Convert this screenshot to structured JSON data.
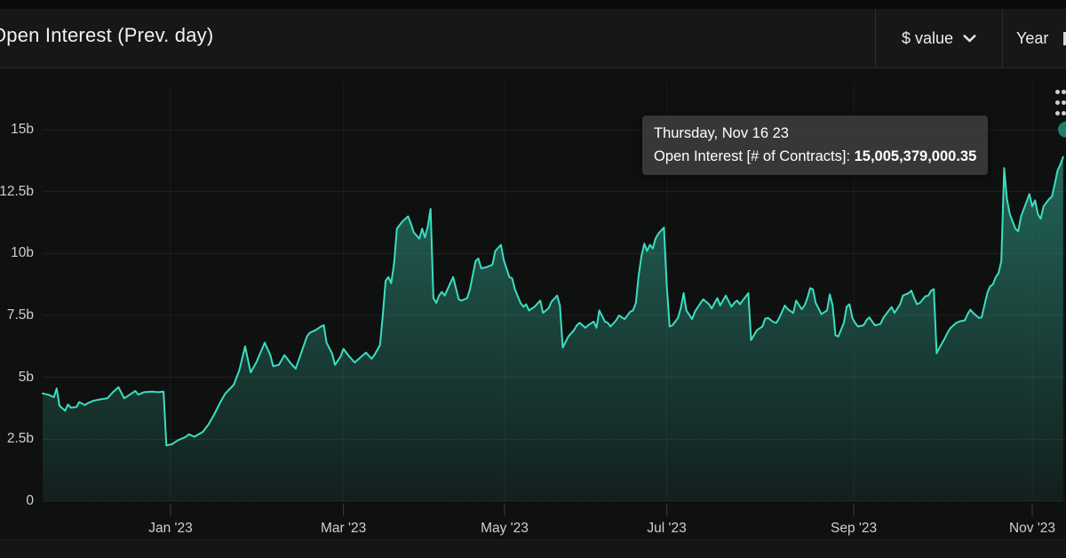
{
  "header": {
    "title": "Open Interest (Prev. day)",
    "unit_selector": {
      "label": "$ value"
    },
    "range_selector": {
      "label": "Year"
    }
  },
  "tooltip": {
    "date": "Thursday, Nov 16 23",
    "series_label": "Open Interest [# of Contracts]:",
    "value": "15,005,379,000.35"
  },
  "chart_data": {
    "type": "area",
    "title": "Open Interest (Prev. day)",
    "grid": "horizontal",
    "legend": "off",
    "colors": {
      "line": "#3adec0",
      "fill_top": "rgba(62,227,196,0.40)",
      "fill_bottom": "rgba(62,227,196,0.07)",
      "marker": "rgba(62,227,196,0.5)",
      "background": "#0f1010"
    },
    "x_axis": {
      "unit": "days from chart start (approx. mid-Nov 2022)",
      "ticks": [
        {
          "label": "Jan '23",
          "day": 45.5
        },
        {
          "label": "Mar '23",
          "day": 107
        },
        {
          "label": "May '23",
          "day": 164.3
        },
        {
          "label": "Jul '23",
          "day": 222
        },
        {
          "label": "Sep '23",
          "day": 288.5
        },
        {
          "label": "Nov '23",
          "day": 352
        }
      ]
    },
    "y_axis": {
      "unit": "billions",
      "range": [
        0,
        17
      ],
      "ticks": [
        {
          "label": "0",
          "v": 0
        },
        {
          "label": "2.5b",
          "v": 2.5
        },
        {
          "label": "5b",
          "v": 5
        },
        {
          "label": "7.5b",
          "v": 7.5
        },
        {
          "label": "10b",
          "v": 10
        },
        {
          "label": "12.5b",
          "v": 12.5
        },
        {
          "label": "15b",
          "v": 15
        }
      ]
    },
    "hover_point": {
      "date": "Thursday, Nov 16 23",
      "day": 364,
      "value_billions": 15.005,
      "value_text": "15,005,379,000.35"
    },
    "series": [
      {
        "name": "Open Interest [# of Contracts]",
        "points": [
          [
            0,
            4.35
          ],
          [
            2,
            4.3
          ],
          [
            4,
            4.2
          ],
          [
            5,
            4.55
          ],
          [
            6,
            3.85
          ],
          [
            8,
            3.65
          ],
          [
            9,
            3.9
          ],
          [
            10,
            3.78
          ],
          [
            12,
            3.8
          ],
          [
            13,
            4.0
          ],
          [
            15,
            3.88
          ],
          [
            16,
            3.95
          ],
          [
            18,
            4.05
          ],
          [
            20,
            4.1
          ],
          [
            23,
            4.15
          ],
          [
            25,
            4.4
          ],
          [
            27,
            4.6
          ],
          [
            29,
            4.15
          ],
          [
            31,
            4.3
          ],
          [
            33,
            4.45
          ],
          [
            34,
            4.3
          ],
          [
            36,
            4.4
          ],
          [
            39,
            4.42
          ],
          [
            41,
            4.4
          ],
          [
            43,
            4.42
          ],
          [
            44,
            2.25
          ],
          [
            46,
            2.3
          ],
          [
            48,
            2.45
          ],
          [
            51,
            2.6
          ],
          [
            52,
            2.7
          ],
          [
            54,
            2.6
          ],
          [
            57,
            2.8
          ],
          [
            59,
            3.1
          ],
          [
            61,
            3.5
          ],
          [
            63,
            3.95
          ],
          [
            65,
            4.35
          ],
          [
            68,
            4.7
          ],
          [
            70,
            5.3
          ],
          [
            72,
            6.25
          ],
          [
            74,
            5.2
          ],
          [
            76,
            5.6
          ],
          [
            79,
            6.4
          ],
          [
            81,
            5.9
          ],
          [
            82,
            5.45
          ],
          [
            84,
            5.5
          ],
          [
            86,
            5.9
          ],
          [
            88,
            5.6
          ],
          [
            90,
            5.35
          ],
          [
            92,
            6.0
          ],
          [
            94,
            6.65
          ],
          [
            95,
            6.8
          ],
          [
            97,
            6.9
          ],
          [
            99,
            7.05
          ],
          [
            100,
            7.1
          ],
          [
            101,
            6.4
          ],
          [
            103,
            5.95
          ],
          [
            104,
            5.5
          ],
          [
            106,
            5.85
          ],
          [
            107,
            6.15
          ],
          [
            109,
            5.85
          ],
          [
            111,
            5.6
          ],
          [
            113,
            5.8
          ],
          [
            115,
            6.0
          ],
          [
            117,
            5.75
          ],
          [
            118,
            5.9
          ],
          [
            120,
            6.3
          ],
          [
            121,
            7.5
          ],
          [
            122,
            8.9
          ],
          [
            123,
            9.05
          ],
          [
            124,
            8.8
          ],
          [
            125,
            9.6
          ],
          [
            126,
            11.0
          ],
          [
            128,
            11.3
          ],
          [
            130,
            11.5
          ],
          [
            131,
            11.2
          ],
          [
            132,
            10.85
          ],
          [
            134,
            10.6
          ],
          [
            135,
            11.0
          ],
          [
            136,
            10.65
          ],
          [
            137,
            11.1
          ],
          [
            138,
            11.8
          ],
          [
            139,
            8.2
          ],
          [
            140,
            8.0
          ],
          [
            141,
            8.3
          ],
          [
            142,
            8.45
          ],
          [
            143,
            8.3
          ],
          [
            145,
            8.8
          ],
          [
            146,
            9.05
          ],
          [
            148,
            8.15
          ],
          [
            149,
            8.1
          ],
          [
            151,
            8.2
          ],
          [
            152,
            8.55
          ],
          [
            154,
            9.7
          ],
          [
            155,
            9.8
          ],
          [
            156,
            9.4
          ],
          [
            158,
            9.45
          ],
          [
            160,
            9.55
          ],
          [
            161,
            10.1
          ],
          [
            163,
            10.35
          ],
          [
            164,
            9.75
          ],
          [
            166,
            9.05
          ],
          [
            167,
            9.0
          ],
          [
            168,
            8.55
          ],
          [
            170,
            8.0
          ],
          [
            171,
            7.85
          ],
          [
            172,
            7.95
          ],
          [
            173,
            7.7
          ],
          [
            175,
            7.85
          ],
          [
            177,
            8.1
          ],
          [
            178,
            7.6
          ],
          [
            180,
            7.8
          ],
          [
            181,
            8.05
          ],
          [
            183,
            8.3
          ],
          [
            184,
            7.9
          ],
          [
            185,
            6.2
          ],
          [
            187,
            6.65
          ],
          [
            189,
            6.9
          ],
          [
            190,
            7.1
          ],
          [
            191,
            7.2
          ],
          [
            193,
            7.0
          ],
          [
            194,
            7.1
          ],
          [
            196,
            7.25
          ],
          [
            197,
            7.0
          ],
          [
            198,
            7.7
          ],
          [
            200,
            7.25
          ],
          [
            201,
            7.2
          ],
          [
            202,
            7.05
          ],
          [
            204,
            7.3
          ],
          [
            205,
            7.5
          ],
          [
            207,
            7.35
          ],
          [
            209,
            7.65
          ],
          [
            210,
            7.7
          ],
          [
            211,
            8.0
          ],
          [
            212,
            9.1
          ],
          [
            213,
            9.9
          ],
          [
            214,
            10.4
          ],
          [
            215,
            10.1
          ],
          [
            216,
            10.35
          ],
          [
            217,
            10.2
          ],
          [
            218,
            10.6
          ],
          [
            219,
            10.8
          ],
          [
            221,
            11.05
          ],
          [
            222,
            8.7
          ],
          [
            223,
            7.05
          ],
          [
            224,
            7.1
          ],
          [
            226,
            7.4
          ],
          [
            227,
            7.8
          ],
          [
            228,
            8.4
          ],
          [
            229,
            7.7
          ],
          [
            231,
            7.35
          ],
          [
            232,
            7.65
          ],
          [
            234,
            8.0
          ],
          [
            235,
            8.15
          ],
          [
            237,
            7.95
          ],
          [
            238,
            7.78
          ],
          [
            239,
            8.0
          ],
          [
            240,
            8.2
          ],
          [
            241,
            7.9
          ],
          [
            243,
            8.3
          ],
          [
            245,
            7.85
          ],
          [
            246,
            8.0
          ],
          [
            247,
            8.1
          ],
          [
            248,
            7.95
          ],
          [
            250,
            8.25
          ],
          [
            251,
            8.4
          ],
          [
            252,
            6.5
          ],
          [
            253,
            6.7
          ],
          [
            254,
            6.9
          ],
          [
            256,
            7.05
          ],
          [
            257,
            7.37
          ],
          [
            258,
            7.4
          ],
          [
            260,
            7.23
          ],
          [
            261,
            7.2
          ],
          [
            262,
            7.4
          ],
          [
            264,
            7.9
          ],
          [
            265,
            7.75
          ],
          [
            267,
            7.6
          ],
          [
            268,
            8.1
          ],
          [
            270,
            7.75
          ],
          [
            271,
            7.9
          ],
          [
            272,
            8.2
          ],
          [
            273,
            8.6
          ],
          [
            274,
            8.55
          ],
          [
            275,
            8.0
          ],
          [
            276,
            7.78
          ],
          [
            277,
            7.55
          ],
          [
            279,
            7.7
          ],
          [
            280,
            8.35
          ],
          [
            281,
            7.9
          ],
          [
            282,
            6.7
          ],
          [
            283,
            6.65
          ],
          [
            285,
            7.2
          ],
          [
            286,
            7.85
          ],
          [
            287,
            7.95
          ],
          [
            288,
            7.4
          ],
          [
            289,
            7.2
          ],
          [
            290,
            7.05
          ],
          [
            292,
            7.1
          ],
          [
            293,
            7.3
          ],
          [
            294,
            7.42
          ],
          [
            296,
            7.1
          ],
          [
            298,
            7.15
          ],
          [
            299,
            7.4
          ],
          [
            301,
            7.7
          ],
          [
            302,
            7.84
          ],
          [
            303,
            7.6
          ],
          [
            305,
            7.95
          ],
          [
            306,
            8.3
          ],
          [
            308,
            8.4
          ],
          [
            309,
            8.5
          ],
          [
            310,
            8.2
          ],
          [
            311,
            7.95
          ],
          [
            312,
            8.0
          ],
          [
            314,
            8.27
          ],
          [
            315,
            8.3
          ],
          [
            316,
            8.5
          ],
          [
            317,
            8.56
          ],
          [
            318,
            5.97
          ],
          [
            319,
            6.2
          ],
          [
            321,
            6.6
          ],
          [
            322,
            6.83
          ],
          [
            323,
            7.0
          ],
          [
            325,
            7.2
          ],
          [
            326,
            7.25
          ],
          [
            328,
            7.3
          ],
          [
            329,
            7.55
          ],
          [
            330,
            7.73
          ],
          [
            331,
            7.6
          ],
          [
            333,
            7.4
          ],
          [
            334,
            7.42
          ],
          [
            336,
            8.4
          ],
          [
            337,
            8.67
          ],
          [
            338,
            8.75
          ],
          [
            339,
            9.05
          ],
          [
            340,
            9.2
          ],
          [
            341,
            9.7
          ],
          [
            342,
            13.45
          ],
          [
            343,
            12.2
          ],
          [
            344,
            11.6
          ],
          [
            346,
            11.0
          ],
          [
            347,
            10.9
          ],
          [
            348,
            11.5
          ],
          [
            350,
            12.1
          ],
          [
            351,
            12.4
          ],
          [
            352,
            11.9
          ],
          [
            353,
            12.15
          ],
          [
            354,
            11.6
          ],
          [
            355,
            11.4
          ],
          [
            356,
            11.9
          ],
          [
            358,
            12.2
          ],
          [
            359,
            12.3
          ],
          [
            360,
            12.8
          ],
          [
            361,
            13.35
          ],
          [
            362,
            13.6
          ],
          [
            363,
            13.9
          ]
        ]
      }
    ]
  }
}
